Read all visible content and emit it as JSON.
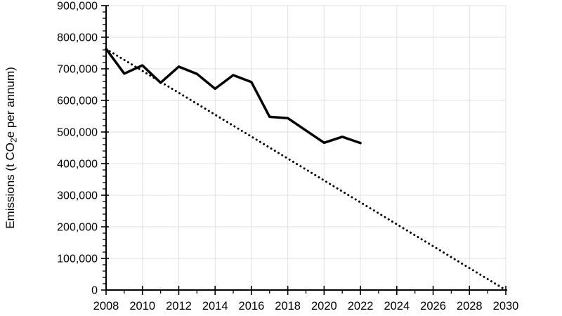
{
  "chart_data": {
    "type": "line",
    "title": "",
    "xlabel": "",
    "ylabel": "Emissions (t CO2e per annum)",
    "ylabel_parts": {
      "pre": "Emissions (t CO",
      "sub": "2",
      "post": "e per annum)"
    },
    "xlim": [
      2008,
      2030
    ],
    "ylim": [
      0,
      900000
    ],
    "grid": "on",
    "legend": "none",
    "x_ticks": {
      "values": [
        2008,
        2010,
        2012,
        2014,
        2016,
        2018,
        2020,
        2022,
        2024,
        2026,
        2028,
        2030
      ],
      "labels": [
        "2008",
        "2010",
        "2012",
        "2014",
        "2016",
        "2018",
        "2020",
        "2022",
        "2024",
        "2026",
        "2028",
        "2030"
      ],
      "minor_step": 1
    },
    "y_ticks": {
      "values": [
        0,
        100000,
        200000,
        300000,
        400000,
        500000,
        600000,
        700000,
        800000,
        900000
      ],
      "labels": [
        "0",
        "100,000",
        "200,000",
        "300,000",
        "400,000",
        "500,000",
        "600,000",
        "700,000",
        "800,000",
        "900,000"
      ],
      "minor_step": 20000
    },
    "series": [
      {
        "id": "actual-emissions-line",
        "style": "solid",
        "color": "#000000",
        "x": [
          2008,
          2009,
          2010,
          2011,
          2012,
          2013,
          2014,
          2015,
          2016,
          2017,
          2018,
          2019,
          2020,
          2021,
          2022
        ],
        "values": [
          763000,
          685000,
          711000,
          656000,
          707000,
          684000,
          637000,
          680000,
          658000,
          548000,
          544000,
          505000,
          466000,
          485000,
          465000
        ]
      },
      {
        "id": "reduction-target-line",
        "style": "dotted",
        "color": "#000000",
        "x": [
          2008,
          2030
        ],
        "values": [
          763000,
          0
        ]
      }
    ],
    "colors": {
      "gridline": "#e2e2e2",
      "axis": "#000000",
      "text": "#000000"
    }
  }
}
